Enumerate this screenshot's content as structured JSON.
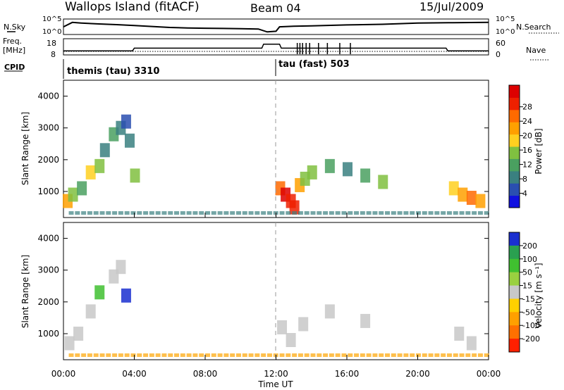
{
  "header": {
    "site": "Wallops Island (fitACF)",
    "beam": "Beam 04",
    "date": "15/Jul/2009"
  },
  "params": {
    "nsky_label": "N.Sky",
    "nsky_ticks": [
      "10^5",
      "10^0"
    ],
    "nsearch_label": "N.Search",
    "nsearch_ticks": [
      "10^5",
      "10^0"
    ],
    "freq_label": "Freq.",
    "freq_unit": "[MHz]",
    "freq_ticks": [
      "18",
      "8"
    ],
    "nave_label": "Nave",
    "nave_ticks": [
      "60",
      "0"
    ],
    "cpid_label": "CPID",
    "cpid_segments": [
      {
        "label": "themis (tau) 3310",
        "start_hour": 0
      },
      {
        "label": "tau (fast) 503",
        "start_hour": 12
      }
    ]
  },
  "time_axis": {
    "label": "Time UT",
    "ticks": [
      "00:00",
      "04:00",
      "08:00",
      "12:00",
      "16:00",
      "20:00",
      "00:00"
    ]
  },
  "range_axis": {
    "label": "Slant Range [km]",
    "ticks": [
      "1000",
      "2000",
      "3000",
      "4000"
    ]
  },
  "power_scale": {
    "label": "Power [dB]",
    "ticks": [
      "4",
      "8",
      "12",
      "16",
      "20",
      "24",
      "28"
    ],
    "colors": [
      "#1010e0",
      "#2a4fb0",
      "#3a8080",
      "#4aa060",
      "#80c040",
      "#ffd020",
      "#ffa000",
      "#ff6a00",
      "#ee2000",
      "#dd0000"
    ]
  },
  "velocity_scale": {
    "label": "Velocity [m s⁻¹]",
    "ticks": [
      "200",
      "100",
      "50",
      "15",
      "-15",
      "-50",
      "-100",
      "-200"
    ],
    "colors": [
      "#1a2fd0",
      "#2aa050",
      "#40c030",
      "#9ad040",
      "#c8c8c8",
      "#ffd000",
      "#ffa000",
      "#ff7000",
      "#ff2000"
    ]
  },
  "chart_data": [
    {
      "type": "line",
      "name": "N.Sky / N.Search",
      "x_hours": [
        0,
        0.5,
        1,
        2,
        3,
        4,
        5,
        6,
        7,
        8,
        9,
        10,
        11,
        11.5,
        12,
        12.2,
        13,
        14,
        16,
        18,
        20,
        22,
        24
      ],
      "y_norm": [
        0.55,
        0.9,
        0.85,
        0.78,
        0.72,
        0.65,
        0.58,
        0.5,
        0.46,
        0.44,
        0.42,
        0.4,
        0.38,
        0.15,
        0.2,
        0.55,
        0.6,
        0.62,
        0.7,
        0.75,
        0.85,
        0.88,
        0.9
      ]
    },
    {
      "type": "line",
      "name": "Freq.",
      "x_hours": [
        0,
        3.9,
        4.0,
        11.2,
        11.3,
        12.2,
        12.3,
        21.6,
        21.7,
        24
      ],
      "y_mhz": [
        10,
        10,
        12,
        12,
        15,
        15,
        12,
        12,
        10,
        10
      ]
    },
    {
      "type": "heatmap",
      "title": "Power",
      "xlabel": "Time UT",
      "ylabel": "Slant Range [km]",
      "xlim": [
        0,
        24
      ],
      "ylim": [
        180,
        4500
      ],
      "zlim": [
        0,
        30
      ],
      "cells_time_hours": [
        0.2,
        0.5,
        1.0,
        1.5,
        2.0,
        2.3,
        2.8,
        3.2,
        3.5,
        3.7,
        4.0,
        12.2,
        12.5,
        12.8,
        13.0,
        13.3,
        13.6,
        14.0,
        15.0,
        16.0,
        17.0,
        18.0,
        22.0,
        22.5,
        23.0,
        23.5
      ],
      "cells_range_km": [
        700,
        900,
        1100,
        1600,
        1800,
        2300,
        2800,
        3000,
        3200,
        2600,
        1500,
        1100,
        900,
        700,
        500,
        1200,
        1400,
        1600,
        1800,
        1700,
        1500,
        1300,
        1100,
        900,
        800,
        700
      ],
      "cells_power_db": [
        20,
        14,
        10,
        16,
        12,
        8,
        10,
        6,
        4,
        6,
        12,
        22,
        28,
        26,
        24,
        18,
        14,
        12,
        10,
        8,
        10,
        12,
        16,
        18,
        22,
        20
      ]
    },
    {
      "type": "heatmap",
      "title": "Velocity",
      "xlabel": "Time UT",
      "ylabel": "Slant Range [km]",
      "xlim": [
        0,
        24
      ],
      "ylim": [
        180,
        4500
      ],
      "zlim": [
        -200,
        200
      ],
      "cells_time_hours": [
        0.3,
        0.8,
        1.5,
        2.0,
        2.8,
        3.2,
        3.5,
        12.3,
        12.8,
        13.5,
        15.0,
        17.0,
        22.3,
        23.0
      ],
      "cells_range_km": [
        700,
        1000,
        1700,
        2300,
        2800,
        3100,
        2200,
        1200,
        800,
        1300,
        1700,
        1400,
        1000,
        700
      ],
      "cells_velocity_ms": [
        0,
        5,
        -5,
        60,
        0,
        10,
        220,
        0,
        -10,
        5,
        0,
        -5,
        0,
        0
      ]
    }
  ]
}
